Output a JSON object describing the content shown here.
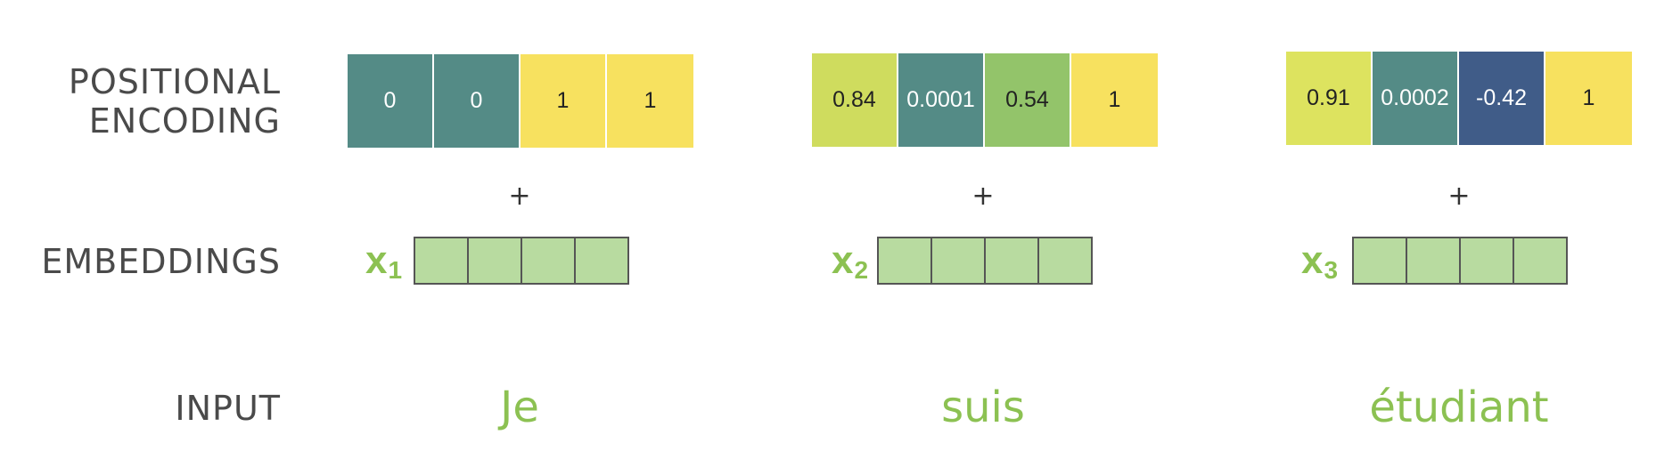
{
  "labels": {
    "positional_encoding": "POSITIONAL\nENCODING",
    "embeddings": "EMBEDDINGS",
    "input": "INPUT"
  },
  "plus_sign": "+",
  "tokens": [
    {
      "word": "Je",
      "x_label": "x",
      "x_sub": "1",
      "pe": [
        {
          "value": "0",
          "color": "#548b86",
          "text_color": "#ffffff"
        },
        {
          "value": "0",
          "color": "#548b86",
          "text_color": "#ffffff"
        },
        {
          "value": "1",
          "color": "#f7e15f",
          "text_color": "#222222"
        },
        {
          "value": "1",
          "color": "#f7e15f",
          "text_color": "#222222"
        }
      ]
    },
    {
      "word": "suis",
      "x_label": "x",
      "x_sub": "2",
      "pe": [
        {
          "value": "0.84",
          "color": "#cfdc5e",
          "text_color": "#222222"
        },
        {
          "value": "0.0001",
          "color": "#548b86",
          "text_color": "#ffffff"
        },
        {
          "value": "0.54",
          "color": "#93c46a",
          "text_color": "#222222"
        },
        {
          "value": "1",
          "color": "#f7e15f",
          "text_color": "#222222"
        }
      ]
    },
    {
      "word": "étudiant",
      "x_label": "x",
      "x_sub": "3",
      "pe": [
        {
          "value": "0.91",
          "color": "#dde35f",
          "text_color": "#222222"
        },
        {
          "value": "0.0002",
          "color": "#548b86",
          "text_color": "#ffffff"
        },
        {
          "value": "-0.42",
          "color": "#405c88",
          "text_color": "#ffffff"
        },
        {
          "value": "1",
          "color": "#f7e15f",
          "text_color": "#222222"
        }
      ]
    }
  ]
}
